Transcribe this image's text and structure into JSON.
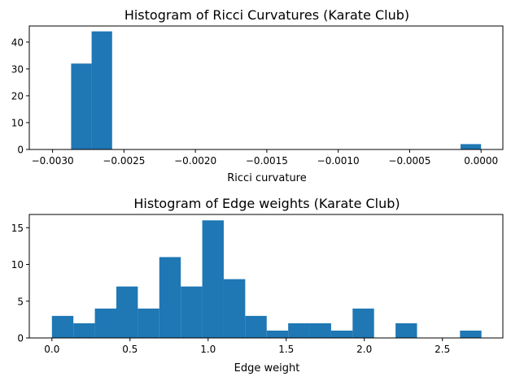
{
  "chart_data": [
    {
      "type": "bar",
      "title": "Histogram of Ricci Curvatures (Karate Club)",
      "xlabel": "Ricci curvature",
      "ylabel": "",
      "xlim": [
        -0.003,
        0.0
      ],
      "ylim": [
        0,
        46
      ],
      "xticks": [
        -0.003,
        -0.0025,
        -0.002,
        -0.0015,
        -0.001,
        -0.0005,
        0.0
      ],
      "xtick_labels": [
        "−0.0030",
        "−0.0025",
        "−0.0020",
        "−0.0015",
        "−0.0010",
        "−0.0005",
        "0.0000"
      ],
      "yticks": [
        0,
        10,
        20,
        30,
        40
      ],
      "ytick_labels": [
        "0",
        "10",
        "20",
        "30",
        "40"
      ],
      "bin_start": -0.00287,
      "bin_end": 0.0,
      "bins": 20,
      "values": [
        32,
        44,
        0,
        0,
        0,
        0,
        0,
        0,
        0,
        0,
        0,
        0,
        0,
        0,
        0,
        0,
        0,
        0,
        0,
        2
      ],
      "grid": false,
      "color": "#1f77b4"
    },
    {
      "type": "bar",
      "title": "Histogram of Edge weights (Karate Club)",
      "xlabel": "Edge weight",
      "ylabel": "",
      "xlim": [
        0.0,
        2.75
      ],
      "ylim": [
        0,
        16.8
      ],
      "xticks": [
        0.0,
        0.5,
        1.0,
        1.5,
        2.0,
        2.5
      ],
      "xtick_labels": [
        "0.0",
        "0.5",
        "1.0",
        "1.5",
        "2.0",
        "2.5"
      ],
      "yticks": [
        0,
        5,
        10,
        15
      ],
      "ytick_labels": [
        "0",
        "5",
        "10",
        "15"
      ],
      "bin_start": 0.0,
      "bin_end": 2.75,
      "bins": 20,
      "values": [
        3,
        2,
        4,
        7,
        4,
        11,
        7,
        16,
        8,
        3,
        1,
        2,
        2,
        1,
        4,
        0,
        2,
        0,
        0,
        1
      ],
      "grid": false,
      "color": "#1f77b4"
    }
  ]
}
